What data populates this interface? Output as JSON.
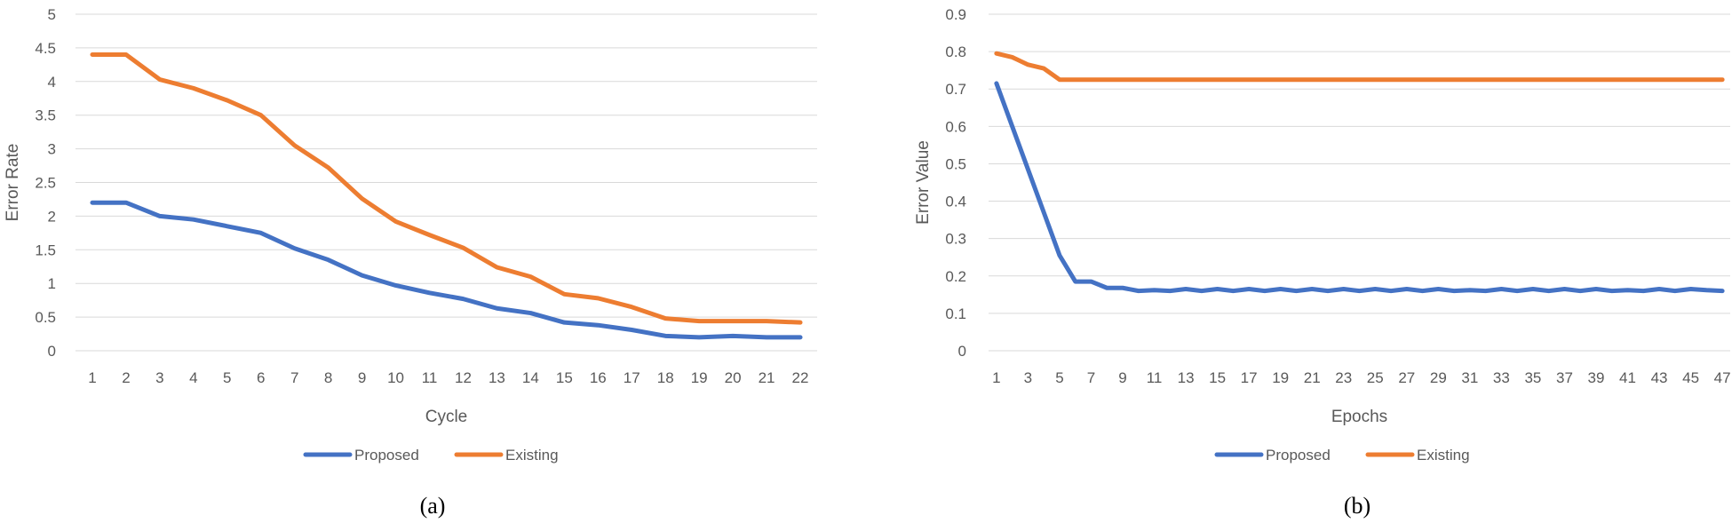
{
  "panels": [
    {
      "caption": "(a)"
    },
    {
      "caption": "(b)"
    }
  ],
  "colors": {
    "proposed": "#4472c4",
    "existing": "#ed7d31",
    "grid": "#d9d9d9",
    "text": "#595959"
  },
  "chart_data": [
    {
      "type": "line",
      "xlabel": "Cycle",
      "ylabel": "Error Rate",
      "ylim": [
        0,
        5
      ],
      "yticks": [
        "0",
        "0.5",
        "1",
        "1.5",
        "2",
        "2.5",
        "3",
        "3.5",
        "4",
        "4.5",
        "5"
      ],
      "categories": [
        "1",
        "2",
        "3",
        "4",
        "5",
        "6",
        "7",
        "8",
        "9",
        "10",
        "11",
        "12",
        "13",
        "14",
        "15",
        "16",
        "17",
        "18",
        "19",
        "20",
        "21",
        "22"
      ],
      "grid": true,
      "legend": "bottom",
      "series": [
        {
          "name": "Proposed",
          "color": "#4472c4",
          "values": [
            2.2,
            2.2,
            2.0,
            1.95,
            1.85,
            1.75,
            1.52,
            1.35,
            1.12,
            0.97,
            0.86,
            0.77,
            0.63,
            0.56,
            0.42,
            0.38,
            0.31,
            0.22,
            0.2,
            0.22,
            0.2,
            0.2
          ]
        },
        {
          "name": "Existing",
          "color": "#ed7d31",
          "values": [
            4.4,
            4.4,
            4.03,
            3.9,
            3.72,
            3.5,
            3.05,
            2.72,
            2.26,
            1.92,
            1.72,
            1.53,
            1.24,
            1.1,
            0.84,
            0.78,
            0.65,
            0.48,
            0.44,
            0.44,
            0.44,
            0.42
          ]
        }
      ]
    },
    {
      "type": "line",
      "xlabel": "Epochs",
      "ylabel": "Error Value",
      "ylim": [
        0,
        0.9
      ],
      "yticks": [
        "0",
        "0.1",
        "0.2",
        "0.3",
        "0.4",
        "0.5",
        "0.6",
        "0.7",
        "0.8",
        "0.9"
      ],
      "x": [
        1,
        2,
        3,
        4,
        5,
        6,
        7,
        8,
        9,
        10,
        11,
        12,
        13,
        14,
        15,
        16,
        17,
        18,
        19,
        20,
        21,
        22,
        23,
        24,
        25,
        26,
        27,
        28,
        29,
        30,
        31,
        32,
        33,
        34,
        35,
        36,
        37,
        38,
        39,
        40,
        41,
        42,
        43,
        44,
        45,
        46,
        47
      ],
      "tick_labels": [
        "1",
        "3",
        "5",
        "7",
        "9",
        "11",
        "13",
        "15",
        "17",
        "19",
        "21",
        "23",
        "25",
        "27",
        "29",
        "31",
        "33",
        "35",
        "37",
        "39",
        "41",
        "43",
        "45",
        "47"
      ],
      "grid": true,
      "legend": "bottom",
      "series": [
        {
          "name": "Proposed",
          "color": "#4472c4",
          "values": [
            0.715,
            0.6,
            0.485,
            0.37,
            0.255,
            0.185,
            0.185,
            0.168,
            0.168,
            0.16,
            0.162,
            0.16,
            0.165,
            0.16,
            0.165,
            0.16,
            0.165,
            0.16,
            0.165,
            0.16,
            0.165,
            0.16,
            0.165,
            0.16,
            0.165,
            0.16,
            0.165,
            0.16,
            0.165,
            0.16,
            0.162,
            0.16,
            0.165,
            0.16,
            0.165,
            0.16,
            0.165,
            0.16,
            0.165,
            0.16,
            0.162,
            0.16,
            0.165,
            0.16,
            0.165,
            0.162,
            0.16
          ]
        },
        {
          "name": "Existing",
          "color": "#ed7d31",
          "values": [
            0.795,
            0.785,
            0.765,
            0.755,
            0.725,
            0.725,
            0.725,
            0.725,
            0.725,
            0.725,
            0.725,
            0.725,
            0.725,
            0.725,
            0.725,
            0.725,
            0.725,
            0.725,
            0.725,
            0.725,
            0.725,
            0.725,
            0.725,
            0.725,
            0.725,
            0.725,
            0.725,
            0.725,
            0.725,
            0.725,
            0.725,
            0.725,
            0.725,
            0.725,
            0.725,
            0.725,
            0.725,
            0.725,
            0.725,
            0.725,
            0.725,
            0.725,
            0.725,
            0.725,
            0.725,
            0.725,
            0.725
          ]
        }
      ]
    }
  ]
}
